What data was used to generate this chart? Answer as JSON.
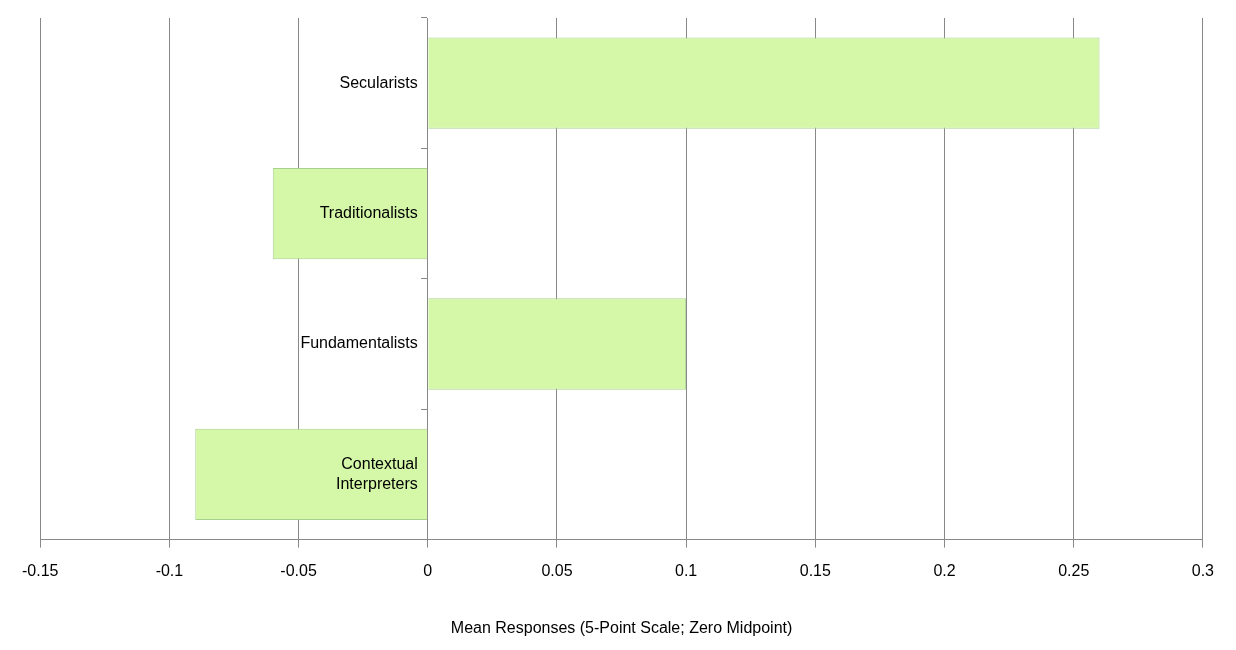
{
  "chart_data": {
    "type": "bar",
    "orientation": "horizontal",
    "xlabel": "Mean Responses (5-Point Scale; Zero Midpoint)",
    "categories": [
      "Secularists",
      "Traditionalists",
      "Fundamentalists",
      "Contextual Interpreters"
    ],
    "values": [
      0.26,
      -0.06,
      0.1,
      -0.09
    ],
    "color": "#d4f7a8",
    "xlim": [
      -0.15,
      0.3
    ],
    "xticks": [
      -0.15,
      -0.1,
      -0.05,
      0,
      0.05,
      0.1,
      0.15,
      0.2,
      0.25,
      0.3
    ],
    "grid": "x",
    "legend": false
  }
}
